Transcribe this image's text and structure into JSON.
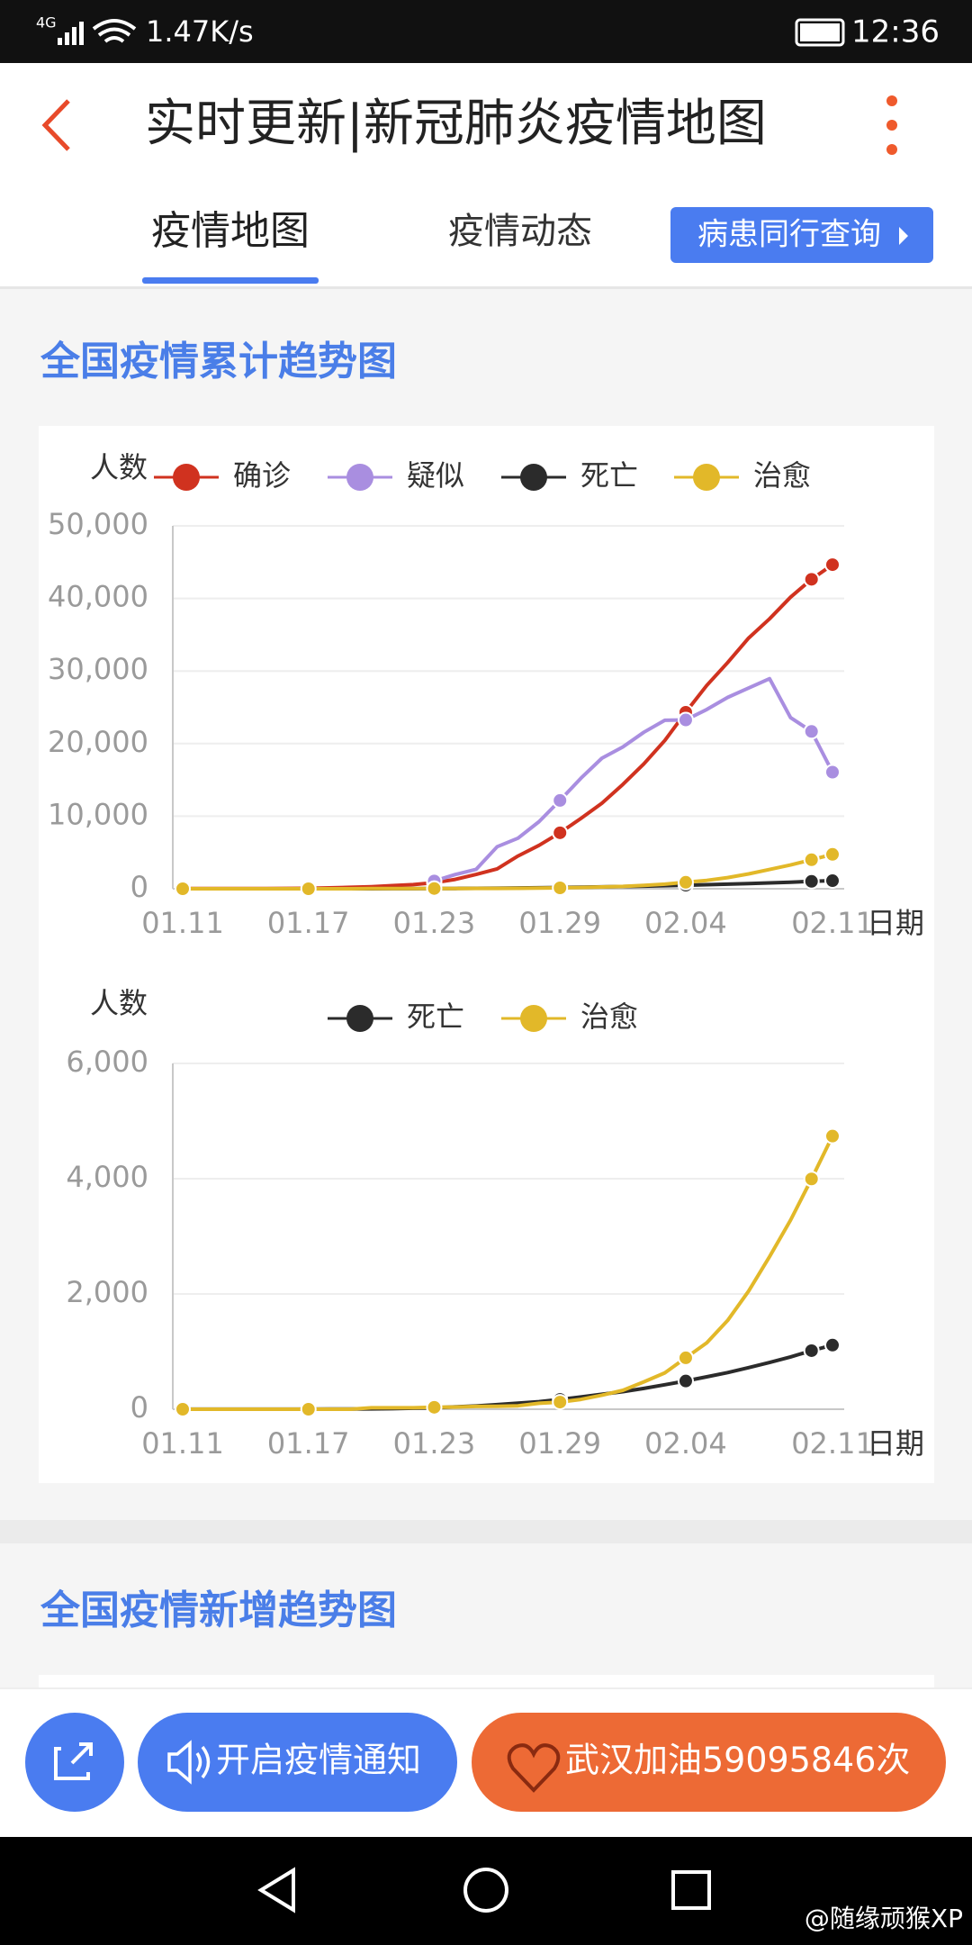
{
  "status_bar": {
    "network": "4G",
    "speed": "1.47K/s",
    "time": "12:36"
  },
  "header": {
    "title": "实时更新|新冠肺炎疫情地图"
  },
  "tabs": [
    "疫情地图",
    "疫情动态"
  ],
  "tab_button": "病患同行查询",
  "sections": [
    {
      "title": "全国疫情累计趋势图"
    },
    {
      "title": "全国疫情新增趋势图"
    }
  ],
  "chart_data": [
    {
      "type": "line",
      "y_label": "人数",
      "x_label": "日期",
      "grid": true,
      "categories": [
        "01.11",
        null,
        null,
        null,
        null,
        null,
        "01.17",
        null,
        null,
        null,
        null,
        null,
        "01.23",
        null,
        null,
        null,
        null,
        null,
        "01.29",
        null,
        null,
        null,
        null,
        null,
        "02.04",
        null,
        null,
        null,
        null,
        null,
        null,
        "02.11"
      ],
      "ylim": [
        0,
        50000
      ],
      "yticks": [
        0,
        {
          "value": 10000,
          "label": "10,000"
        },
        {
          "value": 20000,
          "label": "20,000"
        },
        {
          "value": 30000,
          "label": "30,000"
        },
        {
          "value": 40000,
          "label": "40,000"
        },
        {
          "value": 50000,
          "label": "50,000"
        }
      ],
      "series": [
        {
          "name": "确诊",
          "color": "#d0321f",
          "values": [
            41,
            41,
            41,
            41,
            41,
            45,
            62,
            121,
            198,
            291,
            440,
            571,
            830,
            1287,
            1975,
            2744,
            4515,
            5974,
            7711,
            9692,
            11791,
            14380,
            17205,
            20438,
            24324,
            28018,
            31161,
            34546,
            37198,
            40171,
            42638,
            44653
          ]
        },
        {
          "name": "疑似",
          "color": "#a98ee0",
          "values": [
            null,
            null,
            null,
            null,
            null,
            null,
            null,
            null,
            null,
            null,
            null,
            null,
            1072,
            1965,
            2684,
            5794,
            6973,
            9239,
            12167,
            15238,
            17988,
            19544,
            21558,
            23214,
            23260,
            24702,
            26359,
            27657,
            28942,
            23589,
            21675,
            16067
          ]
        },
        {
          "name": "死亡",
          "color": "#2b2b2b",
          "values": [
            1,
            1,
            1,
            1,
            1,
            2,
            2,
            3,
            3,
            6,
            9,
            17,
            25,
            41,
            56,
            80,
            106,
            132,
            170,
            213,
            259,
            304,
            361,
            425,
            490,
            563,
            636,
            722,
            811,
            908,
            1016,
            1113
          ]
        },
        {
          "name": "治愈",
          "color": "#e2b829",
          "values": [
            0,
            0,
            0,
            0,
            0,
            0,
            0,
            0,
            0,
            25,
            25,
            25,
            34,
            38,
            49,
            51,
            60,
            103,
            124,
            171,
            243,
            328,
            475,
            632,
            892,
            1153,
            1540,
            2050,
            2649,
            3281,
            3996,
            4740
          ]
        }
      ]
    },
    {
      "type": "line",
      "y_label": "人数",
      "x_label": "日期",
      "grid": true,
      "categories": [
        "01.11",
        null,
        null,
        null,
        null,
        null,
        "01.17",
        null,
        null,
        null,
        null,
        null,
        "01.23",
        null,
        null,
        null,
        null,
        null,
        "01.29",
        null,
        null,
        null,
        null,
        null,
        "02.04",
        null,
        null,
        null,
        null,
        null,
        null,
        "02.11"
      ],
      "ylim": [
        0,
        6000
      ],
      "yticks": [
        0,
        {
          "value": 2000,
          "label": "2,000"
        },
        {
          "value": 4000,
          "label": "4,000"
        },
        {
          "value": 6000,
          "label": "6,000"
        }
      ],
      "series": [
        {
          "name": "死亡",
          "color": "#2b2b2b",
          "values": [
            1,
            1,
            1,
            1,
            1,
            2,
            2,
            3,
            3,
            6,
            9,
            17,
            25,
            41,
            56,
            80,
            106,
            132,
            170,
            213,
            259,
            304,
            361,
            425,
            490,
            563,
            636,
            722,
            811,
            908,
            1016,
            1113
          ]
        },
        {
          "name": "治愈",
          "color": "#e2b829",
          "values": [
            0,
            0,
            0,
            0,
            0,
            0,
            0,
            0,
            0,
            25,
            25,
            25,
            34,
            38,
            49,
            51,
            60,
            103,
            124,
            171,
            243,
            328,
            475,
            632,
            892,
            1153,
            1540,
            2050,
            2649,
            3281,
            3996,
            4740
          ]
        }
      ]
    }
  ],
  "bottom_bar": {
    "notify": "开启疫情通知",
    "cheer": "武汉加油59095846次"
  },
  "watermark": "@随缘顽猴XP"
}
